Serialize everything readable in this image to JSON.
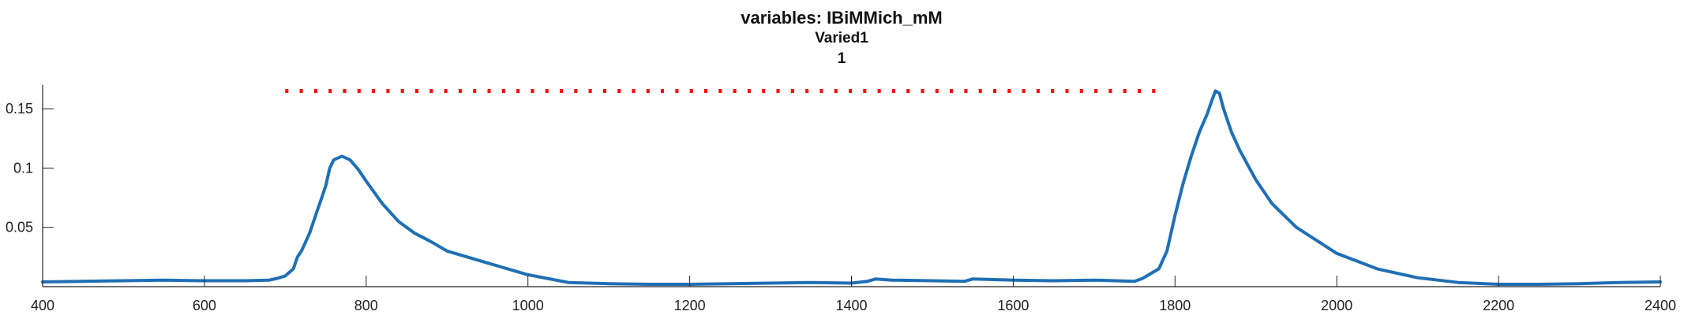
{
  "chart_data": {
    "type": "line",
    "title": [
      "variables: IBiMMich_mM",
      "Varied1",
      "1"
    ],
    "xlabel": "",
    "ylabel": "",
    "xlim": [
      400,
      2400
    ],
    "ylim": [
      0,
      0.17
    ],
    "xticks": [
      400,
      600,
      800,
      1000,
      1200,
      1400,
      1600,
      1800,
      2000,
      2200,
      2400
    ],
    "xtick_labels": [
      "400",
      "600",
      "800",
      "1000",
      "1200",
      "1400",
      "1600",
      "1800",
      "2000",
      "2200",
      "2400"
    ],
    "yticks": [
      0.05,
      0.1,
      0.15
    ],
    "ytick_labels": [
      "0.05",
      "0.1",
      "0.15"
    ],
    "grid": false,
    "series": [
      {
        "color": "#1f6fb5",
        "style": "solid",
        "x": [
          400,
          450,
          500,
          550,
          600,
          650,
          680,
          690,
          700,
          710,
          715,
          720,
          730,
          740,
          745,
          750,
          755,
          760,
          770,
          780,
          790,
          800,
          820,
          840,
          860,
          880,
          900,
          950,
          1000,
          1050,
          1100,
          1150,
          1200,
          1250,
          1300,
          1350,
          1400,
          1420,
          1430,
          1440,
          1450,
          1500,
          1540,
          1550,
          1600,
          1650,
          1700,
          1750,
          1760,
          1770,
          1780,
          1790,
          1800,
          1810,
          1820,
          1830,
          1840,
          1845,
          1850,
          1855,
          1860,
          1870,
          1880,
          1900,
          1920,
          1950,
          2000,
          2050,
          2100,
          2150,
          2200,
          2250,
          2300,
          2350,
          2400
        ],
        "y": [
          0.004,
          0.0045,
          0.005,
          0.0055,
          0.005,
          0.005,
          0.0055,
          0.007,
          0.009,
          0.015,
          0.025,
          0.03,
          0.045,
          0.065,
          0.075,
          0.085,
          0.1,
          0.107,
          0.11,
          0.107,
          0.099,
          0.089,
          0.07,
          0.055,
          0.045,
          0.038,
          0.03,
          0.02,
          0.01,
          0.0035,
          0.0025,
          0.002,
          0.002,
          0.0025,
          0.003,
          0.0035,
          0.003,
          0.0045,
          0.0065,
          0.006,
          0.0055,
          0.005,
          0.0045,
          0.0065,
          0.0055,
          0.005,
          0.0055,
          0.0045,
          0.007,
          0.011,
          0.015,
          0.03,
          0.06,
          0.087,
          0.11,
          0.13,
          0.146,
          0.156,
          0.165,
          0.163,
          0.15,
          0.13,
          0.115,
          0.09,
          0.07,
          0.05,
          0.028,
          0.015,
          0.0075,
          0.0035,
          0.002,
          0.002,
          0.0025,
          0.0035,
          0.004
        ]
      },
      {
        "color": "#ff0000",
        "style": "dotted",
        "x": [
          700,
          1780
        ],
        "y": [
          0.165,
          0.165
        ]
      }
    ]
  }
}
